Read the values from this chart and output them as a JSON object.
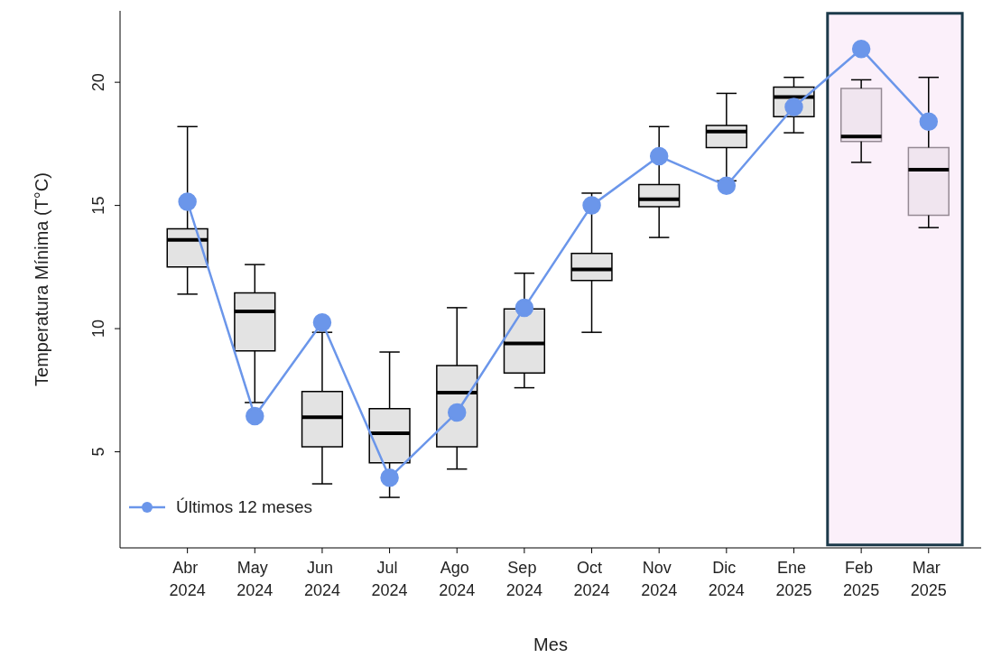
{
  "chart_data": {
    "type": "box",
    "xlabel": "Mes",
    "ylabel": "Temperatura Mínima (T°C)",
    "categories": [
      "Abr 2024",
      "May 2024",
      "Jun 2024",
      "Jul 2024",
      "Ago 2024",
      "Sep 2024",
      "Oct 2024",
      "Nov 2024",
      "Dic 2024",
      "Ene 2025",
      "Feb 2025",
      "Mar 2025"
    ],
    "boxes": [
      {
        "low": 11.4,
        "q1": 12.5,
        "median": 13.6,
        "q3": 14.05,
        "high": 18.2
      },
      {
        "low": 7.0,
        "q1": 9.1,
        "median": 10.7,
        "q3": 11.45,
        "high": 12.6
      },
      {
        "low": 3.7,
        "q1": 5.2,
        "median": 6.4,
        "q3": 7.45,
        "high": 9.85
      },
      {
        "low": 3.15,
        "q1": 4.55,
        "median": 5.75,
        "q3": 6.75,
        "high": 9.05
      },
      {
        "low": 4.3,
        "q1": 5.2,
        "median": 7.4,
        "q3": 8.5,
        "high": 10.85
      },
      {
        "low": 7.6,
        "q1": 8.2,
        "median": 9.4,
        "q3": 10.8,
        "high": 12.25
      },
      {
        "low": 9.85,
        "q1": 11.95,
        "median": 12.4,
        "q3": 13.05,
        "high": 15.5
      },
      {
        "low": 13.7,
        "q1": 14.95,
        "median": 15.25,
        "q3": 15.85,
        "high": 18.2
      },
      {
        "low": 16.0,
        "q1": 17.35,
        "median": 18.0,
        "q3": 18.25,
        "high": 19.55
      },
      {
        "low": 17.95,
        "q1": 18.6,
        "median": 19.4,
        "q3": 19.8,
        "high": 20.2
      },
      {
        "low": 16.75,
        "q1": 17.6,
        "median": 17.8,
        "q3": 19.75,
        "high": 20.1
      },
      {
        "low": 14.1,
        "q1": 14.6,
        "median": 16.45,
        "q3": 17.35,
        "high": 20.2
      }
    ],
    "series": [
      {
        "name": "Últimos 12 meses",
        "type": "line",
        "color": "#6b96ea",
        "values": [
          15.15,
          6.45,
          10.25,
          3.95,
          6.6,
          10.85,
          15.0,
          17.0,
          15.8,
          19.0,
          21.35,
          18.4
        ]
      }
    ],
    "ylim": [
      1.1,
      22.9
    ],
    "yticks": [
      5,
      10,
      15,
      20
    ],
    "legend": "bottom left",
    "marker": "circle",
    "bands": [
      {
        "axis": "x",
        "from": "Feb 2025",
        "to": "Mar 2025",
        "color": "#f8e6f6"
      }
    ]
  }
}
